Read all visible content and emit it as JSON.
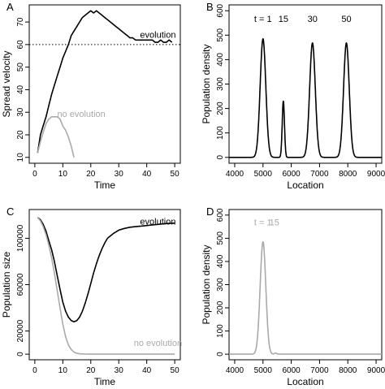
{
  "colors": {
    "evolution": "#000000",
    "no_evolution": "#aaaaaa"
  },
  "chart_data": [
    {
      "panel": "A",
      "type": "line",
      "xlabel": "Time",
      "ylabel": "Spread velocity",
      "xlim": [
        0,
        50
      ],
      "ylim": [
        10,
        75
      ],
      "xticks": [
        0,
        10,
        20,
        30,
        40,
        50
      ],
      "yticks": [
        10,
        20,
        30,
        40,
        50,
        60,
        70
      ],
      "hline": {
        "y": 60,
        "style": "dotted"
      },
      "annotations": [
        "evolution",
        "no evolution"
      ],
      "series": [
        {
          "name": "evolution",
          "color": "#000000",
          "x": [
            1,
            2,
            3,
            4,
            5,
            6,
            7,
            8,
            9,
            10,
            11,
            12,
            13,
            14,
            15,
            16,
            17,
            18,
            19,
            20,
            21,
            22,
            23,
            24,
            25,
            26,
            27,
            28,
            29,
            30,
            31,
            32,
            33,
            34,
            35,
            36,
            37,
            38,
            39,
            40,
            41,
            42,
            43,
            44,
            45,
            46,
            47,
            48,
            49
          ],
          "y": [
            12,
            20,
            24,
            28,
            33,
            38,
            42,
            46,
            50,
            54,
            57,
            60,
            64,
            66,
            68,
            70,
            72,
            73,
            74,
            75,
            74,
            75,
            74,
            73,
            72,
            71,
            70,
            69,
            68,
            67,
            66,
            65,
            64,
            63,
            63,
            62,
            62,
            62,
            62,
            62,
            62,
            62,
            61,
            61,
            62,
            61,
            61,
            62,
            61
          ]
        },
        {
          "name": "no evolution",
          "color": "#aaaaaa",
          "x": [
            1,
            2,
            3,
            4,
            5,
            6,
            7,
            8,
            9,
            10,
            11,
            12,
            13,
            14
          ],
          "y": [
            12,
            17,
            21,
            25,
            27,
            28,
            28,
            28,
            27,
            24,
            22,
            19,
            15,
            10
          ]
        }
      ]
    },
    {
      "panel": "B",
      "type": "line",
      "xlabel": "Location",
      "ylabel": "Population density",
      "xlim": [
        4000,
        9000
      ],
      "ylim": [
        0,
        600
      ],
      "xticks": [
        4000,
        5000,
        6000,
        7000,
        8000,
        9000
      ],
      "yticks": [
        0,
        100,
        200,
        300,
        400,
        500,
        600
      ],
      "peaks": [
        {
          "label": "t = 1",
          "center": 5000,
          "height": 485,
          "width": 100
        },
        {
          "label": "15",
          "center": 5720,
          "height": 230,
          "width": 40
        },
        {
          "label": "30",
          "center": 6750,
          "height": 468,
          "width": 100
        },
        {
          "label": "50",
          "center": 7950,
          "height": 468,
          "width": 100
        }
      ],
      "series_color": "#000000"
    },
    {
      "panel": "C",
      "type": "line",
      "xlabel": "Time",
      "ylabel": "Population size",
      "xlim": [
        0,
        50
      ],
      "ylim": [
        0,
        120000
      ],
      "xticks": [
        0,
        10,
        20,
        30,
        40,
        50
      ],
      "yticks": [
        0,
        20000,
        60000,
        100000
      ],
      "annotations": [
        "evolution",
        "no evolution"
      ],
      "series": [
        {
          "name": "evolution",
          "color": "#000000",
          "x": [
            1,
            2,
            3,
            4,
            5,
            6,
            7,
            8,
            9,
            10,
            11,
            12,
            13,
            14,
            15,
            16,
            17,
            18,
            19,
            20,
            21,
            22,
            23,
            24,
            25,
            26,
            28,
            30,
            32,
            34,
            36,
            38,
            40,
            42,
            44,
            46,
            48,
            50
          ],
          "y": [
            118000,
            116000,
            112000,
            106000,
            98000,
            90000,
            80000,
            68000,
            56000,
            45000,
            37000,
            32000,
            29000,
            28000,
            29000,
            32000,
            37000,
            44000,
            52000,
            61000,
            70000,
            78000,
            85000,
            91000,
            96000,
            100000,
            104000,
            107000,
            108500,
            109500,
            110000,
            110500,
            111000,
            111500,
            112000,
            112500,
            112800,
            113000
          ]
        },
        {
          "name": "no evolution",
          "color": "#aaaaaa",
          "x": [
            1,
            2,
            3,
            4,
            5,
            6,
            7,
            8,
            9,
            10,
            11,
            12,
            13,
            14,
            15,
            16,
            18,
            20,
            30,
            40,
            50
          ],
          "y": [
            118000,
            115000,
            110000,
            103000,
            94000,
            83000,
            70000,
            55000,
            40000,
            26000,
            15000,
            8000,
            4000,
            1800,
            800,
            300,
            100,
            0,
            0,
            0,
            0
          ]
        }
      ]
    },
    {
      "panel": "D",
      "type": "line",
      "xlabel": "Location",
      "ylabel": "Population density",
      "xlim": [
        4000,
        9000
      ],
      "ylim": [
        0,
        600
      ],
      "xticks": [
        4000,
        5000,
        6000,
        7000,
        8000,
        9000
      ],
      "yticks": [
        0,
        100,
        200,
        300,
        400,
        500,
        600
      ],
      "peaks": [
        {
          "label": "t = 1",
          "center": 5000,
          "height": 485,
          "width": 100
        },
        {
          "label": "15",
          "center": 5450,
          "height": 5,
          "width": 40
        }
      ],
      "series_color": "#aaaaaa"
    }
  ]
}
